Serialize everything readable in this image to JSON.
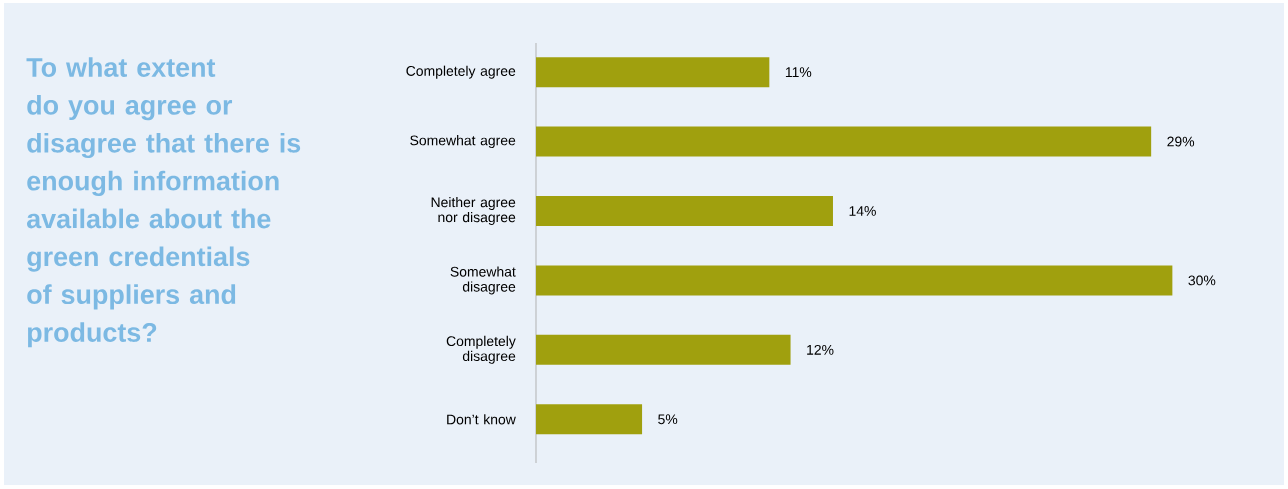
{
  "chart_data": {
    "type": "bar",
    "orientation": "horizontal",
    "title": "To what extent do you agree or disagree that there is enough information available about the green credentials of suppliers and products?",
    "categories": [
      "Completely agree",
      "Somewhat agree",
      "Neither agree nor disagree",
      "Somewhat disagree",
      "Completely disagree",
      "Don’t know"
    ],
    "values": [
      11,
      29,
      14,
      30,
      12,
      5
    ],
    "value_labels": [
      "11%",
      "29%",
      "14%",
      "30%",
      "12%",
      "5%"
    ],
    "color": "#a0a00e"
  }
}
